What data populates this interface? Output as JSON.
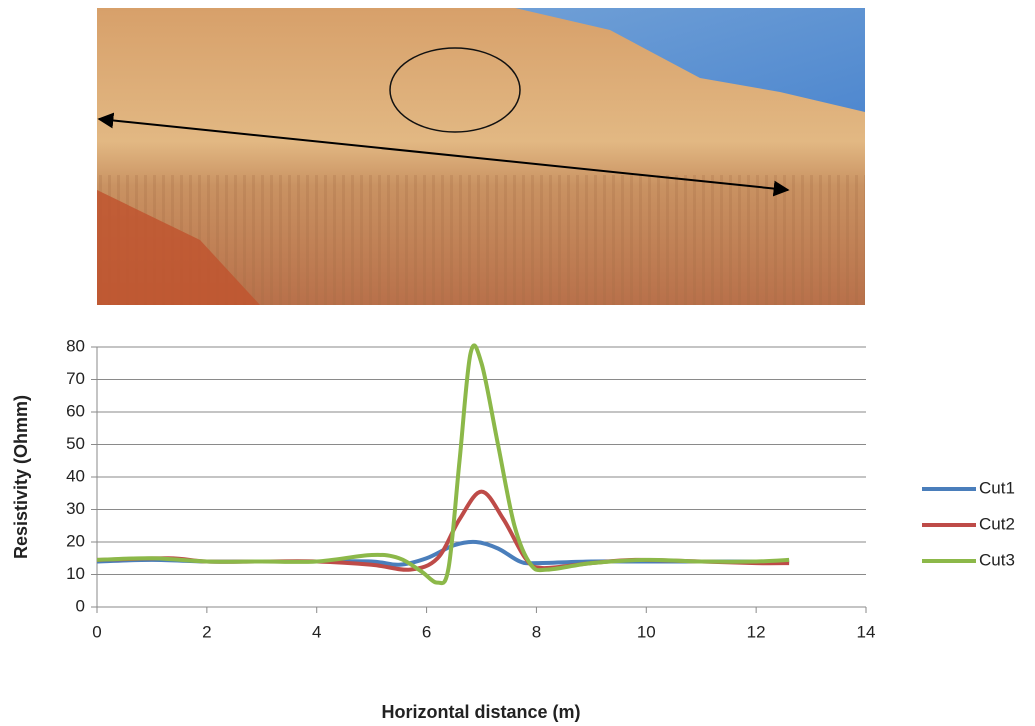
{
  "chart_data": {
    "type": "line",
    "x_label": "Horizontal distance (m)",
    "y_label": "Resistivity (Ohmm)",
    "xlim": [
      0,
      14
    ],
    "xticks": [
      0,
      2,
      4,
      6,
      8,
      10,
      12,
      14
    ],
    "ylim": [
      0,
      80
    ],
    "yticks": [
      0,
      10,
      20,
      30,
      40,
      50,
      60,
      70,
      80
    ],
    "grid": true,
    "legend": "right",
    "series": [
      {
        "name": "Cut1",
        "color": "#4a7ebb",
        "x": [
          0,
          1,
          2,
          3,
          4,
          5,
          5.5,
          6,
          6.5,
          6.9,
          7.3,
          7.7,
          8,
          9,
          10,
          11,
          12,
          12.6
        ],
        "values": [
          14,
          14.5,
          14,
          14,
          14,
          14,
          13,
          15,
          19,
          20,
          18,
          14,
          13.5,
          14,
          14,
          14,
          14,
          14
        ]
      },
      {
        "name": "Cut2",
        "color": "#be4b48",
        "x": [
          0,
          1.3,
          2,
          3,
          4,
          5,
          5.7,
          6.2,
          6.6,
          7,
          7.4,
          7.8,
          8.1,
          9,
          9.8,
          11,
          12,
          12.6
        ],
        "values": [
          14.5,
          15,
          14,
          14,
          14,
          13,
          11.5,
          15,
          27,
          35.5,
          27,
          15,
          12,
          13.5,
          14.5,
          14,
          13.5,
          13.5
        ]
      },
      {
        "name": "Cut3",
        "color": "#8cb849",
        "x": [
          0,
          1,
          2,
          3,
          4,
          5,
          5.5,
          5.9,
          6.2,
          6.4,
          6.6,
          6.8,
          7,
          7.3,
          7.6,
          7.9,
          8.2,
          9,
          10,
          11,
          12,
          12.6
        ],
        "values": [
          14.5,
          15,
          14,
          14,
          14,
          16,
          15,
          11,
          7.5,
          12,
          45,
          78,
          75,
          50,
          25,
          13,
          11.5,
          13.5,
          14.5,
          14,
          14,
          14.5
        ]
      }
    ]
  }
}
